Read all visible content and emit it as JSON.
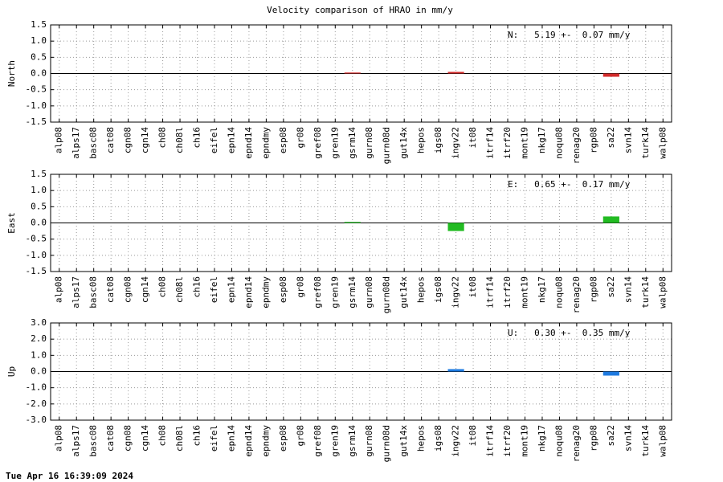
{
  "title": "Velocity comparison of HRAO in mm/y",
  "footer": "Tue Apr 16 16:39:09 2024",
  "chart_data": [
    {
      "type": "bar",
      "ylabel": "North",
      "annotation": "N:   5.19 +-  0.07 mm/y",
      "categories": [
        "alp08",
        "alps17",
        "basc08",
        "cat08",
        "cgn08",
        "cgn14",
        "ch08",
        "ch08l",
        "ch16",
        "eifel",
        "epn14",
        "epnd14",
        "epndmy",
        "esp08",
        "gr08",
        "gref08",
        "gren19",
        "gsrm14",
        "gurn08",
        "gurn08d",
        "gut14x",
        "hepos",
        "igs08",
        "ingv22",
        "it08",
        "itrf14",
        "itrf20",
        "mont19",
        "nkg17",
        "noqu08",
        "renag20",
        "rgp08",
        "sa22",
        "svn14",
        "turk14",
        "walp08"
      ],
      "values": [
        null,
        null,
        null,
        null,
        null,
        null,
        null,
        null,
        null,
        null,
        null,
        null,
        null,
        null,
        null,
        null,
        null,
        0.03,
        null,
        null,
        null,
        null,
        null,
        0.05,
        null,
        null,
        null,
        null,
        null,
        null,
        null,
        null,
        -0.1,
        null,
        null,
        null
      ],
      "color": "#d22b2b",
      "ylim": [
        -1.5,
        1.5
      ],
      "yticks": [
        {
          "value": 1.5,
          "label": "1.5"
        },
        {
          "value": 1,
          "label": "1.0"
        },
        {
          "value": 0.5,
          "label": "0.5"
        },
        {
          "value": 0,
          "label": "0.0"
        },
        {
          "value": -0.5,
          "label": "-0.5"
        },
        {
          "value": -1,
          "label": "-1.0"
        },
        {
          "value": -1.5,
          "label": "-1.5"
        }
      ],
      "grid": true
    },
    {
      "type": "bar",
      "ylabel": "East",
      "annotation": "E:   0.65 +-  0.17 mm/y",
      "categories": [
        "alp08",
        "alps17",
        "basc08",
        "cat08",
        "cgn08",
        "cgn14",
        "ch08",
        "ch08l",
        "ch16",
        "eifel",
        "epn14",
        "epnd14",
        "epndmy",
        "esp08",
        "gr08",
        "gref08",
        "gren19",
        "gsrm14",
        "gurn08",
        "gurn08d",
        "gut14x",
        "hepos",
        "igs08",
        "ingv22",
        "it08",
        "itrf14",
        "itrf20",
        "mont19",
        "nkg17",
        "noqu08",
        "renag20",
        "rgp08",
        "sa22",
        "svn14",
        "turk14",
        "walp08"
      ],
      "values": [
        null,
        null,
        null,
        null,
        null,
        null,
        null,
        null,
        null,
        null,
        null,
        null,
        null,
        null,
        null,
        null,
        null,
        0.03,
        null,
        null,
        null,
        null,
        null,
        -0.25,
        null,
        null,
        null,
        null,
        null,
        null,
        null,
        null,
        0.2,
        null,
        null,
        null
      ],
      "color": "#22bb22",
      "ylim": [
        -1.5,
        1.5
      ],
      "yticks": [
        {
          "value": 1.5,
          "label": "1.5"
        },
        {
          "value": 1,
          "label": "1.0"
        },
        {
          "value": 0.5,
          "label": "0.5"
        },
        {
          "value": 0,
          "label": "0.0"
        },
        {
          "value": -0.5,
          "label": "-0.5"
        },
        {
          "value": -1,
          "label": "-1.0"
        },
        {
          "value": -1.5,
          "label": "-1.5"
        }
      ],
      "grid": true
    },
    {
      "type": "bar",
      "ylabel": "Up",
      "annotation": "U:   0.30 +-  0.35 mm/y",
      "categories": [
        "alp08",
        "alps17",
        "basc08",
        "cat08",
        "cgn08",
        "cgn14",
        "ch08",
        "ch08l",
        "ch16",
        "eifel",
        "epn14",
        "epnd14",
        "epndmy",
        "esp08",
        "gr08",
        "gref08",
        "gren19",
        "gsrm14",
        "gurn08",
        "gurn08d",
        "gut14x",
        "hepos",
        "igs08",
        "ingv22",
        "it08",
        "itrf14",
        "itrf20",
        "mont19",
        "nkg17",
        "noqu08",
        "renag20",
        "rgp08",
        "sa22",
        "svn14",
        "turk14",
        "walp08"
      ],
      "values": [
        null,
        null,
        null,
        null,
        null,
        null,
        null,
        null,
        null,
        null,
        null,
        null,
        null,
        null,
        null,
        null,
        null,
        null,
        null,
        null,
        null,
        null,
        null,
        0.15,
        null,
        null,
        null,
        null,
        null,
        null,
        null,
        null,
        -0.25,
        null,
        null,
        null
      ],
      "color": "#1e7ae0",
      "ylim": [
        -3,
        3
      ],
      "yticks": [
        {
          "value": 3,
          "label": "3.0"
        },
        {
          "value": 2,
          "label": "2.0"
        },
        {
          "value": 1,
          "label": "1.0"
        },
        {
          "value": 0,
          "label": "0.0"
        },
        {
          "value": -1,
          "label": "-1.0"
        },
        {
          "value": -2,
          "label": "-2.0"
        },
        {
          "value": -3,
          "label": "-3.0"
        }
      ],
      "grid": true
    }
  ]
}
